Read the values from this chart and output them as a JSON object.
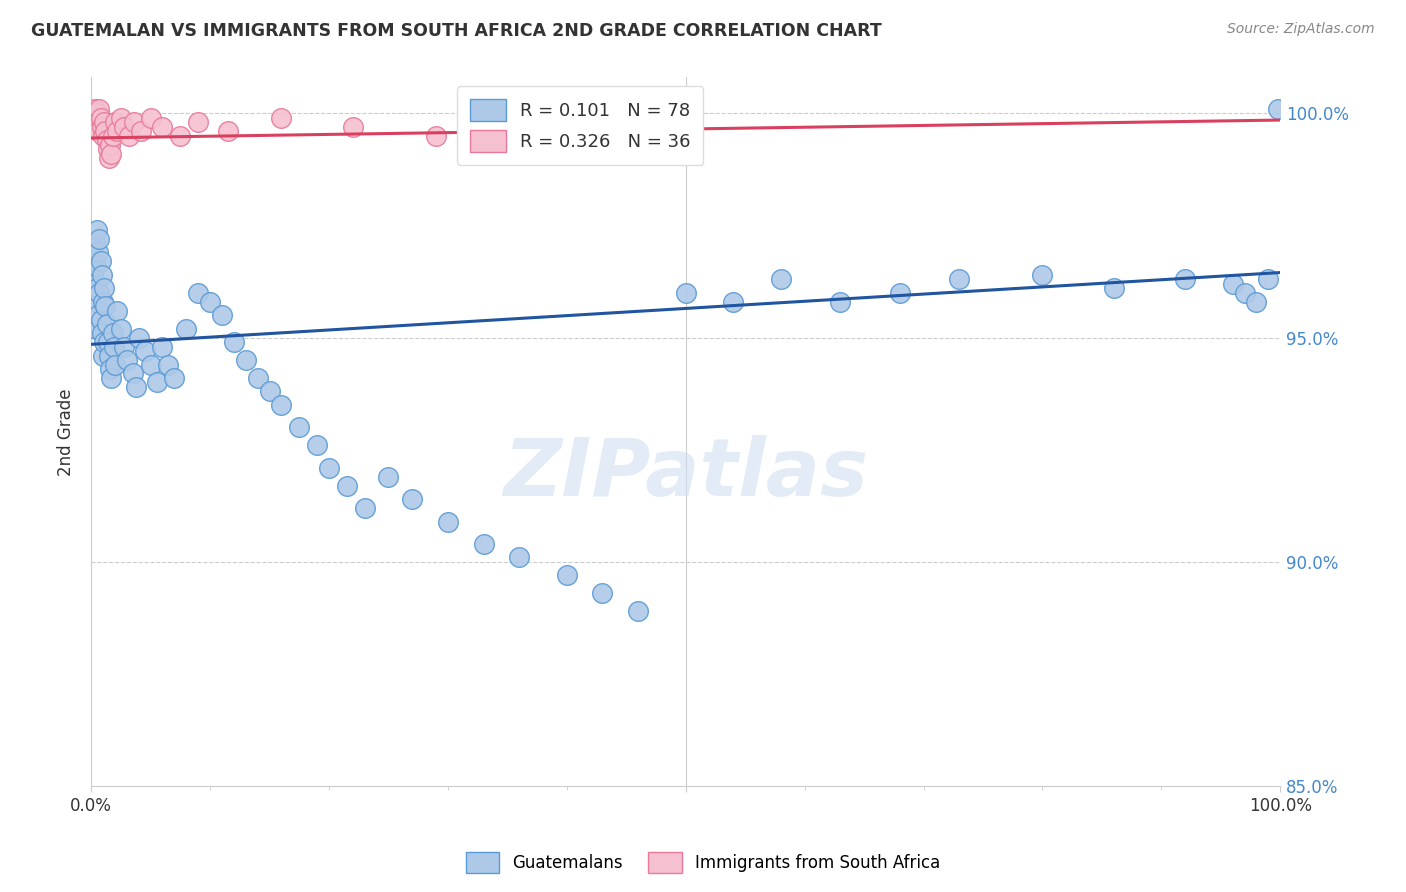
{
  "title": "GUATEMALAN VS IMMIGRANTS FROM SOUTH AFRICA 2ND GRADE CORRELATION CHART",
  "source": "Source: ZipAtlas.com",
  "ylabel": "2nd Grade",
  "xlim": [
    0.0,
    1.0
  ],
  "ylim": [
    0.875,
    1.008
  ],
  "yticks": [
    0.85,
    0.9,
    0.95,
    1.0
  ],
  "ytick_labels": [
    "85.0%",
    "90.0%",
    "95.0%",
    "100.0%"
  ],
  "blue_R": 0.101,
  "blue_N": 78,
  "pink_R": 0.326,
  "pink_N": 36,
  "blue_color": "#aec9e8",
  "blue_edge_color": "#5b9bd5",
  "pink_color": "#f5c0d0",
  "pink_edge_color": "#e8799a",
  "blue_line_color": "#2155a0",
  "pink_line_color": "#d94060",
  "watermark_color": "#d0dff0",
  "grid_color": "#cccccc",
  "title_color": "#333333",
  "right_axis_color": "#4488cc",
  "blue_line_y0": 0.9485,
  "blue_line_y1": 0.9645,
  "pink_line_y0": 0.9945,
  "pink_line_y1": 0.9985,
  "blue_x": [
    0.001,
    0.002,
    0.003,
    0.003,
    0.004,
    0.004,
    0.005,
    0.005,
    0.006,
    0.006,
    0.007,
    0.007,
    0.008,
    0.008,
    0.009,
    0.009,
    0.01,
    0.01,
    0.011,
    0.011,
    0.012,
    0.013,
    0.014,
    0.015,
    0.016,
    0.017,
    0.018,
    0.019,
    0.02,
    0.022,
    0.025,
    0.028,
    0.03,
    0.035,
    0.038,
    0.04,
    0.045,
    0.05,
    0.055,
    0.06,
    0.065,
    0.07,
    0.08,
    0.09,
    0.1,
    0.11,
    0.12,
    0.13,
    0.14,
    0.15,
    0.16,
    0.175,
    0.19,
    0.2,
    0.215,
    0.23,
    0.25,
    0.27,
    0.3,
    0.33,
    0.36,
    0.4,
    0.43,
    0.46,
    0.5,
    0.54,
    0.58,
    0.63,
    0.68,
    0.73,
    0.8,
    0.86,
    0.92,
    0.96,
    0.97,
    0.98,
    0.99,
    0.998
  ],
  "blue_y": [
    0.967,
    0.963,
    0.971,
    0.958,
    0.966,
    0.952,
    0.974,
    0.961,
    0.969,
    0.955,
    0.972,
    0.96,
    0.967,
    0.954,
    0.964,
    0.951,
    0.958,
    0.946,
    0.961,
    0.949,
    0.957,
    0.953,
    0.949,
    0.946,
    0.943,
    0.941,
    0.951,
    0.948,
    0.944,
    0.956,
    0.952,
    0.948,
    0.945,
    0.942,
    0.939,
    0.95,
    0.947,
    0.944,
    0.94,
    0.948,
    0.944,
    0.941,
    0.952,
    0.96,
    0.958,
    0.955,
    0.949,
    0.945,
    0.941,
    0.938,
    0.935,
    0.93,
    0.926,
    0.921,
    0.917,
    0.912,
    0.919,
    0.914,
    0.909,
    0.904,
    0.901,
    0.897,
    0.893,
    0.889,
    0.96,
    0.958,
    0.963,
    0.958,
    0.96,
    0.963,
    0.964,
    0.961,
    0.963,
    0.962,
    0.96,
    0.958,
    0.963,
    1.001
  ],
  "pink_x": [
    0.001,
    0.002,
    0.003,
    0.004,
    0.004,
    0.005,
    0.006,
    0.006,
    0.007,
    0.008,
    0.009,
    0.01,
    0.011,
    0.012,
    0.013,
    0.014,
    0.015,
    0.016,
    0.017,
    0.018,
    0.02,
    0.022,
    0.025,
    0.028,
    0.032,
    0.036,
    0.042,
    0.05,
    0.06,
    0.075,
    0.09,
    0.115,
    0.16,
    0.22,
    0.29,
    0.38
  ],
  "pink_y": [
    0.999,
    0.998,
    1.001,
    0.999,
    0.997,
    1.0,
    0.998,
    0.996,
    1.001,
    0.999,
    0.997,
    0.995,
    0.998,
    0.996,
    0.994,
    0.992,
    0.99,
    0.993,
    0.991,
    0.995,
    0.998,
    0.996,
    0.999,
    0.997,
    0.995,
    0.998,
    0.996,
    0.999,
    0.997,
    0.995,
    0.998,
    0.996,
    0.999,
    0.997,
    0.995,
    0.998
  ]
}
